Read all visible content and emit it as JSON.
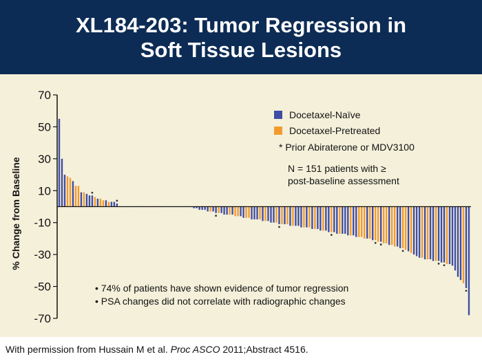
{
  "header": {
    "title_line1": "XL184-203: Tumor Regression in",
    "title_line2": "Soft Tissue Lesions"
  },
  "legend": {
    "series1": "Docetaxel-Naïve",
    "series2": "Docetaxel-Pretreated",
    "asterisk_note": "* Prior Abiraterone or MDV3100",
    "n_line1": "N = 151 patients with ≥",
    "n_line2": "post-baseline assessment"
  },
  "notes": {
    "bullet1": "• 74% of patients have shown evidence of tumor regression",
    "bullet2": "• PSA changes did not correlate with radiographic changes"
  },
  "footer": {
    "prefix": "With permission from Hussain M et al. ",
    "journal": "Proc ASCO",
    "suffix": " 2011;Abstract 4516."
  },
  "colors": {
    "naive": "#3f4ea2",
    "pretreated": "#f39a2e",
    "header_bg": "#0d2c55",
    "plot_bg": "#f4f0da"
  },
  "chart_data": {
    "type": "bar",
    "ylabel": "% Change from Baseline",
    "ylim": [
      -70,
      70
    ],
    "yticks": [
      70,
      50,
      30,
      10,
      -10,
      -30,
      -50,
      -70
    ],
    "grid": false,
    "legend_position": "top-right",
    "series_names": [
      "Docetaxel-Naïve",
      "Docetaxel-Pretreated"
    ],
    "values": [
      55,
      30,
      20,
      19,
      18,
      16,
      13,
      13,
      9,
      9,
      8,
      7,
      7,
      6,
      5,
      5,
      4,
      4,
      3,
      3,
      3,
      2,
      0,
      0,
      0,
      0,
      0,
      0,
      0,
      0,
      0,
      0,
      0,
      0,
      0,
      0,
      0,
      0,
      0,
      0,
      0,
      0,
      0,
      0,
      0,
      0,
      0,
      0,
      0,
      -1,
      -1,
      -2,
      -2,
      -2,
      -3,
      -3,
      -3,
      -4,
      -4,
      -4,
      -5,
      -5,
      -5,
      -5,
      -6,
      -6,
      -6,
      -7,
      -7,
      -7,
      -8,
      -8,
      -8,
      -8,
      -9,
      -9,
      -9,
      -10,
      -10,
      -10,
      -11,
      -11,
      -11,
      -11,
      -12,
      -12,
      -12,
      -12,
      -13,
      -13,
      -13,
      -13,
      -14,
      -14,
      -14,
      -15,
      -15,
      -15,
      -16,
      -16,
      -16,
      -17,
      -17,
      -17,
      -17,
      -18,
      -18,
      -18,
      -19,
      -19,
      -19,
      -20,
      -20,
      -20,
      -21,
      -21,
      -22,
      -22,
      -23,
      -23,
      -24,
      -24,
      -25,
      -25,
      -26,
      -26,
      -27,
      -28,
      -29,
      -30,
      -31,
      -32,
      -32,
      -33,
      -33,
      -33,
      -34,
      -34,
      -34,
      -35,
      -35,
      -36,
      -36,
      -37,
      -40,
      -44,
      -46,
      -48,
      -51,
      -68
    ],
    "groups": [
      0,
      0,
      0,
      1,
      1,
      0,
      1,
      1,
      0,
      1,
      0,
      0,
      0,
      1,
      0,
      1,
      1,
      0,
      1,
      0,
      0,
      0,
      0,
      1,
      0,
      1,
      0,
      0,
      1,
      0,
      1,
      0,
      1,
      0,
      1,
      0,
      1,
      0,
      0,
      1,
      0,
      1,
      0,
      1,
      0,
      0,
      1,
      0,
      1,
      0,
      0,
      0,
      0,
      0,
      0,
      1,
      0,
      0,
      1,
      0,
      0,
      0,
      1,
      0,
      1,
      1,
      0,
      0,
      1,
      1,
      0,
      0,
      0,
      1,
      0,
      1,
      0,
      0,
      0,
      1,
      0,
      1,
      0,
      1,
      0,
      1,
      0,
      0,
      0,
      1,
      0,
      1,
      0,
      1,
      0,
      0,
      1,
      0,
      0,
      1,
      0,
      0,
      1,
      0,
      0,
      0,
      1,
      0,
      0,
      1,
      1,
      1,
      0,
      1,
      0,
      1,
      1,
      0,
      1,
      1,
      0,
      1,
      1,
      0,
      0,
      1,
      1,
      0,
      1,
      0,
      0,
      0,
      1,
      0,
      1,
      0,
      0,
      1,
      0,
      0,
      0,
      1,
      0,
      0,
      0,
      0,
      0,
      1,
      0,
      0,
      0
    ],
    "asterisk_indices": [
      12,
      21,
      57,
      80,
      99,
      115,
      117,
      125,
      138,
      140,
      148
    ]
  }
}
